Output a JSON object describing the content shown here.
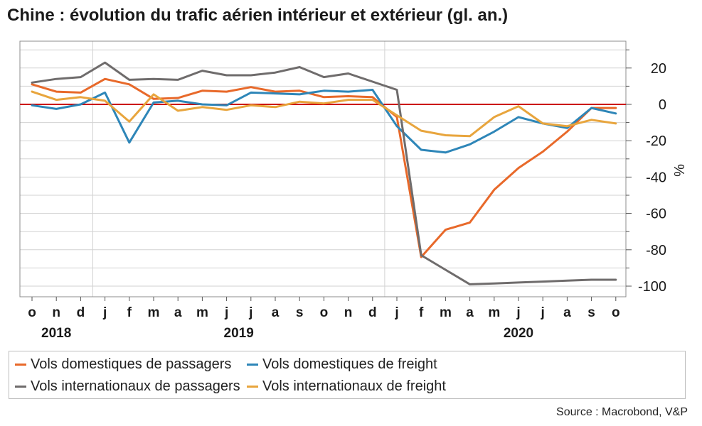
{
  "title": "Chine : évolution du trafic aérien intérieur et extérieur (gl. an.)",
  "source": "Source : Macrobond, V&P",
  "chart_data": {
    "type": "line",
    "x": [
      "o",
      "n",
      "d",
      "j",
      "f",
      "m",
      "a",
      "m",
      "j",
      "j",
      "a",
      "s",
      "o",
      "n",
      "d",
      "j",
      "f",
      "m",
      "a",
      "m",
      "j",
      "j",
      "a",
      "s",
      "o"
    ],
    "year_labels": [
      {
        "label": "2018",
        "index": 1
      },
      {
        "label": "2019",
        "index": 8.5
      },
      {
        "label": "2020",
        "index": 20
      }
    ],
    "year_boundaries": [
      2.5,
      14.5
    ],
    "ylabel": "%",
    "ylim": [
      -106,
      35
    ],
    "yticks": [
      20,
      0,
      -20,
      -40,
      -60,
      -80,
      -100
    ],
    "reference_line": {
      "y": 0,
      "color": "#cc0000"
    },
    "series": [
      {
        "name": "Vols domestiques de passagers",
        "color": "#e8692a",
        "values": [
          11,
          7,
          6.5,
          14,
          11,
          3,
          3.5,
          7.5,
          7,
          9.5,
          7,
          7.5,
          4,
          4.5,
          4,
          -7,
          -84,
          -69,
          -65,
          -47,
          -35,
          -26,
          -15,
          -2,
          -2
        ]
      },
      {
        "name": "Vols domestiques de freight",
        "color": "#2e86b8",
        "values": [
          -0.5,
          -2.5,
          0,
          6.5,
          -21,
          1,
          2,
          0,
          -0.5,
          6.5,
          6,
          5.5,
          7.5,
          7,
          8,
          -12,
          -25,
          -26.5,
          -22,
          -15,
          -7,
          -10.5,
          -13,
          -2,
          -5
        ]
      },
      {
        "name": "Vols internationaux de passagers",
        "color": "#6f6c6c",
        "values": [
          12,
          14,
          15,
          23,
          13.5,
          14,
          13.5,
          18.5,
          16,
          16,
          17.5,
          20.5,
          15,
          17,
          12.5,
          8,
          -83,
          -91,
          -99,
          -98.5,
          -98,
          -97.5,
          -97,
          -96.5,
          -96.5
        ]
      },
      {
        "name": "Vols internationaux de freight",
        "color": "#e8a53d",
        "values": [
          7,
          2.5,
          4,
          2,
          -9.5,
          5.5,
          -3.5,
          -1.5,
          -3,
          -0.5,
          -1.5,
          1.5,
          0.5,
          2.5,
          2.5,
          -6,
          -14.5,
          -17,
          -17.5,
          -7,
          -1,
          -10.5,
          -12,
          -8.5,
          -10.5
        ]
      }
    ],
    "legend_position": "bottom",
    "grid": true
  }
}
